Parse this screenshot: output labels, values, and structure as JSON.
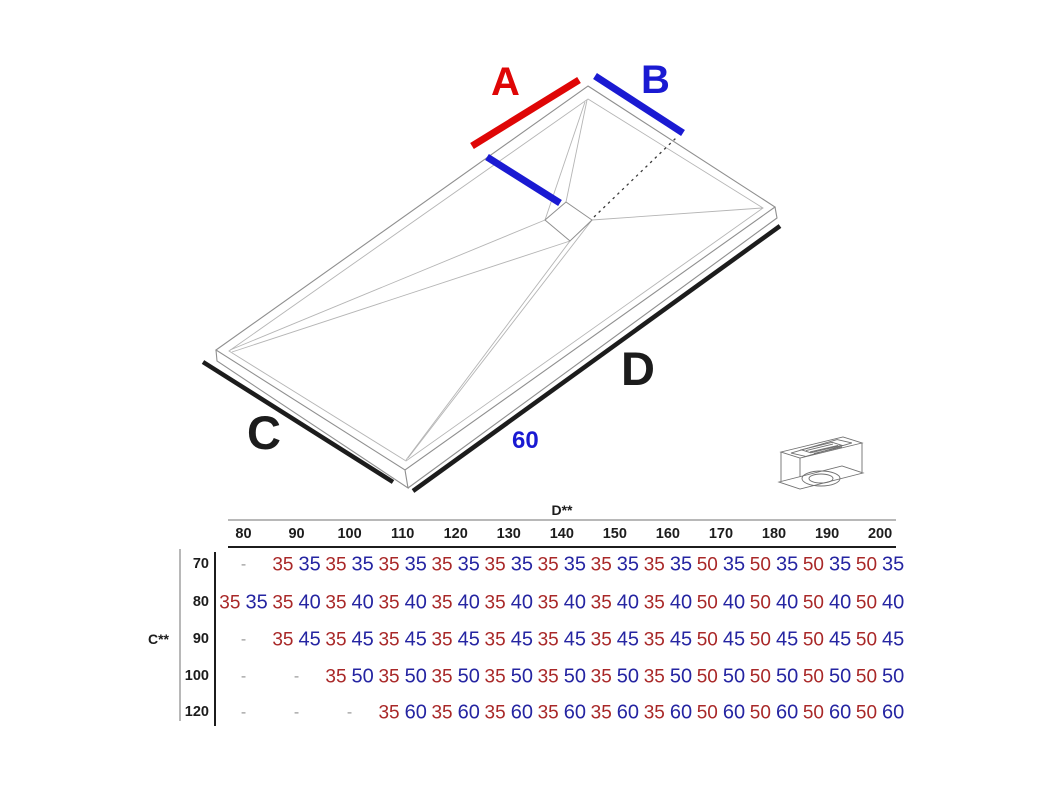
{
  "colors": {
    "accent-red": "#df0606",
    "accent-blue": "#1a1ad2",
    "dim-black": "#1c1c1c",
    "table-red": "#a92828",
    "table-blue": "#2525a2",
    "outline-gray": "#8f8f8f",
    "crease-gray": "#b5b5b5",
    "rule-gray": "#b8b8b8"
  },
  "diagram": {
    "label_a": "A",
    "label_b": "B",
    "label_c": "C",
    "label_d": "D",
    "drain_offset": "60"
  },
  "table": {
    "col_axis_label": "D**",
    "row_axis_label": "C**",
    "empty_marker": "-",
    "columns": [
      "80",
      "90",
      "100",
      "110",
      "120",
      "130",
      "140",
      "150",
      "160",
      "170",
      "180",
      "190",
      "200"
    ],
    "rows": [
      {
        "label": "70",
        "cells": [
          null,
          [
            35,
            35
          ],
          [
            35,
            35
          ],
          [
            35,
            35
          ],
          [
            35,
            35
          ],
          [
            35,
            35
          ],
          [
            35,
            35
          ],
          [
            35,
            35
          ],
          [
            35,
            35
          ],
          [
            50,
            35
          ],
          [
            50,
            35
          ],
          [
            50,
            35
          ],
          [
            50,
            35
          ]
        ]
      },
      {
        "label": "80",
        "cells": [
          [
            35,
            35
          ],
          [
            35,
            40
          ],
          [
            35,
            40
          ],
          [
            35,
            40
          ],
          [
            35,
            40
          ],
          [
            35,
            40
          ],
          [
            35,
            40
          ],
          [
            35,
            40
          ],
          [
            35,
            40
          ],
          [
            50,
            40
          ],
          [
            50,
            40
          ],
          [
            50,
            40
          ],
          [
            50,
            40
          ]
        ]
      },
      {
        "label": "90",
        "cells": [
          null,
          [
            35,
            45
          ],
          [
            35,
            45
          ],
          [
            35,
            45
          ],
          [
            35,
            45
          ],
          [
            35,
            45
          ],
          [
            35,
            45
          ],
          [
            35,
            45
          ],
          [
            35,
            45
          ],
          [
            50,
            45
          ],
          [
            50,
            45
          ],
          [
            50,
            45
          ],
          [
            50,
            45
          ]
        ]
      },
      {
        "label": "100",
        "cells": [
          null,
          null,
          [
            35,
            50
          ],
          [
            35,
            50
          ],
          [
            35,
            50
          ],
          [
            35,
            50
          ],
          [
            35,
            50
          ],
          [
            35,
            50
          ],
          [
            35,
            50
          ],
          [
            50,
            50
          ],
          [
            50,
            50
          ],
          [
            50,
            50
          ],
          [
            50,
            50
          ]
        ]
      },
      {
        "label": "120",
        "cells": [
          null,
          null,
          null,
          [
            35,
            60
          ],
          [
            35,
            60
          ],
          [
            35,
            60
          ],
          [
            35,
            60
          ],
          [
            35,
            60
          ],
          [
            35,
            60
          ],
          [
            50,
            60
          ],
          [
            50,
            60
          ],
          [
            50,
            60
          ],
          [
            50,
            60
          ]
        ]
      }
    ]
  }
}
